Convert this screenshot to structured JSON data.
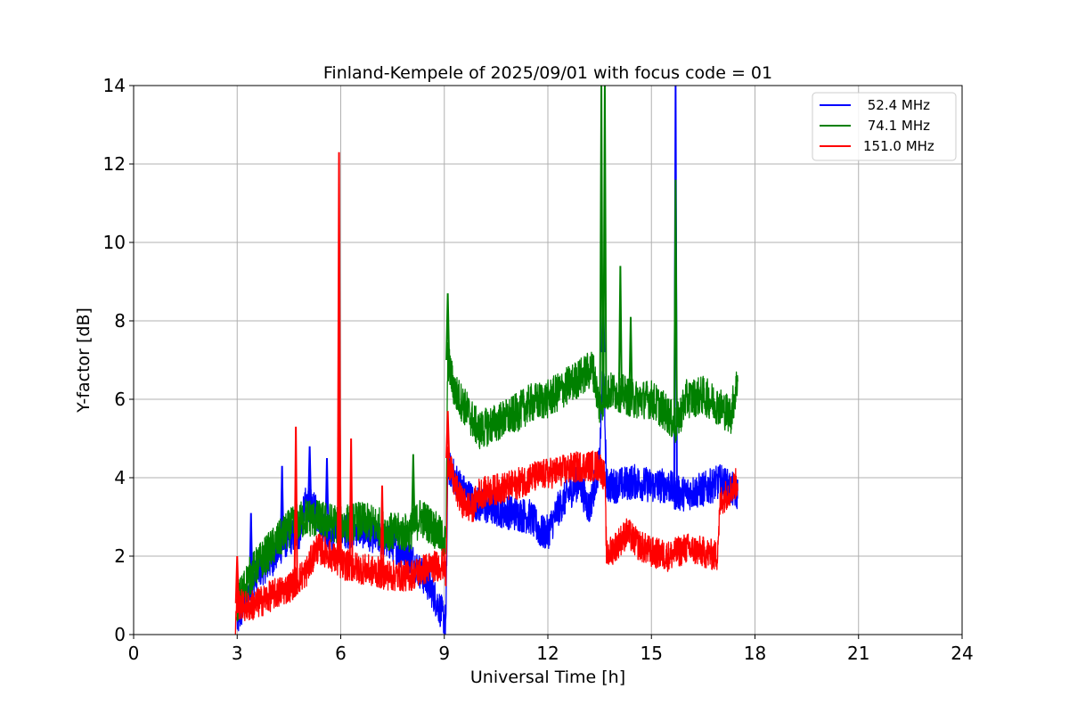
{
  "chart_data": {
    "type": "line",
    "title": "Finland-Kempele of 2025/09/01 with focus code = 01",
    "xlabel": "Universal Time [h]",
    "ylabel": "Y-factor [dB]",
    "xlim": [
      0,
      24
    ],
    "ylim": [
      0,
      14
    ],
    "xticks": [
      0,
      3,
      6,
      9,
      12,
      15,
      18,
      21,
      24
    ],
    "yticks": [
      0,
      2,
      4,
      6,
      8,
      10,
      12,
      14
    ],
    "grid": true,
    "legend_position": "top-right",
    "series": [
      {
        "name": " 52.4 MHz",
        "color": "#0000ff",
        "noise": 0.45,
        "x": [
          3.0,
          3.3,
          3.6,
          4.0,
          4.4,
          4.8,
          5.0,
          5.3,
          5.7,
          6.0,
          6.5,
          7.0,
          7.5,
          7.8,
          8.0,
          8.3,
          8.6,
          8.9,
          9.05,
          9.1,
          9.3,
          9.6,
          10.0,
          10.5,
          11.0,
          11.5,
          11.8,
          12.0,
          12.3,
          12.6,
          12.9,
          13.2,
          13.5,
          13.6,
          13.7,
          14.0,
          14.5,
          15.0,
          15.5,
          15.7,
          16.0,
          16.5,
          17.0,
          17.5
        ],
        "y": [
          0.3,
          1.0,
          1.6,
          1.9,
          2.4,
          2.6,
          3.4,
          3.1,
          2.5,
          2.6,
          2.7,
          2.5,
          2.3,
          2.1,
          2.0,
          1.6,
          1.2,
          0.6,
          0.3,
          4.3,
          4.0,
          3.6,
          3.3,
          3.2,
          3.1,
          3.0,
          2.6,
          2.6,
          3.2,
          3.6,
          3.9,
          3.2,
          4.4,
          7.2,
          3.8,
          3.8,
          3.9,
          3.8,
          3.8,
          3.6,
          3.6,
          3.7,
          3.9,
          3.6
        ],
        "spikes": [
          [
            3.4,
            3.1
          ],
          [
            4.3,
            4.3
          ],
          [
            5.1,
            4.8
          ],
          [
            5.6,
            4.5
          ],
          [
            13.6,
            8.7
          ],
          [
            15.7,
            14.0
          ]
        ]
      },
      {
        "name": " 74.1 MHz",
        "color": "#008000",
        "noise": 0.5,
        "x": [
          3.0,
          3.3,
          3.6,
          4.0,
          4.5,
          5.0,
          5.5,
          6.0,
          6.5,
          7.0,
          7.5,
          8.0,
          8.3,
          8.6,
          8.9,
          9.05,
          9.1,
          9.3,
          9.6,
          10.0,
          10.5,
          11.0,
          11.5,
          12.0,
          12.5,
          13.0,
          13.3,
          13.5,
          13.7,
          14.0,
          14.5,
          15.0,
          15.5,
          15.7,
          16.0,
          16.5,
          17.0,
          17.3,
          17.5
        ],
        "y": [
          0.8,
          1.4,
          1.8,
          2.2,
          2.7,
          3.0,
          2.9,
          2.8,
          2.9,
          2.8,
          2.6,
          2.6,
          3.0,
          2.8,
          2.5,
          2.3,
          7.0,
          6.2,
          5.8,
          5.2,
          5.4,
          5.6,
          5.9,
          6.0,
          6.3,
          6.6,
          6.8,
          5.8,
          6.2,
          6.2,
          6.0,
          6.0,
          5.6,
          5.3,
          6.0,
          6.1,
          5.8,
          5.6,
          6.5
        ],
        "spikes": [
          [
            9.1,
            8.7
          ],
          [
            8.1,
            4.6
          ],
          [
            13.55,
            14.0
          ],
          [
            13.65,
            14.0
          ],
          [
            14.1,
            9.4
          ],
          [
            14.4,
            8.1
          ],
          [
            15.7,
            11.6
          ]
        ]
      },
      {
        "name": "151.0 MHz",
        "color": "#ff0000",
        "noise": 0.4,
        "x": [
          2.95,
          3.0,
          3.3,
          3.6,
          4.0,
          4.5,
          5.0,
          5.3,
          5.6,
          6.0,
          6.5,
          7.0,
          7.5,
          8.0,
          8.5,
          9.0,
          9.05,
          9.1,
          9.3,
          9.5,
          9.8,
          10.0,
          10.5,
          11.0,
          11.5,
          12.0,
          12.5,
          13.0,
          13.5,
          13.65,
          13.7,
          14.0,
          14.3,
          14.6,
          15.0,
          15.5,
          16.0,
          16.5,
          16.9,
          17.0,
          17.5
        ],
        "y": [
          0.3,
          0.8,
          0.7,
          0.8,
          1.0,
          1.2,
          1.6,
          2.2,
          2.1,
          1.8,
          1.7,
          1.6,
          1.5,
          1.5,
          1.7,
          1.8,
          1.4,
          4.5,
          3.8,
          3.4,
          3.2,
          3.6,
          3.7,
          3.8,
          4.0,
          4.1,
          4.2,
          4.3,
          4.3,
          4.0,
          2.0,
          2.3,
          2.6,
          2.3,
          2.1,
          2.0,
          2.2,
          2.1,
          2.0,
          3.4,
          3.9
        ],
        "spikes": [
          [
            3.0,
            2.0
          ],
          [
            4.7,
            5.3
          ],
          [
            5.95,
            12.3
          ],
          [
            5.97,
            5.8
          ],
          [
            6.3,
            5.0
          ],
          [
            7.2,
            3.8
          ],
          [
            9.1,
            5.7
          ]
        ]
      }
    ]
  }
}
